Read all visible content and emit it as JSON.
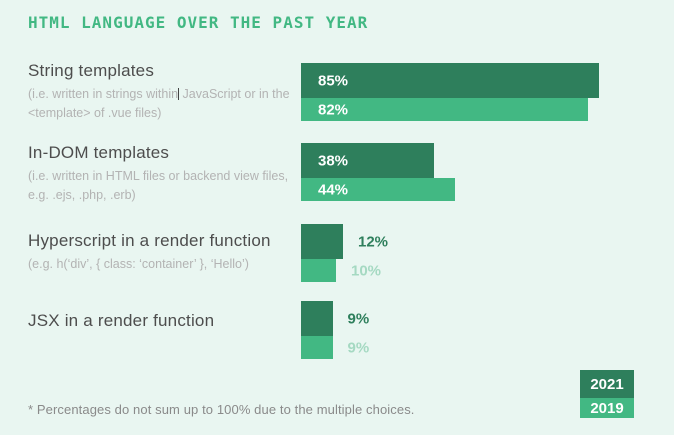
{
  "title": "HTML LANGUAGE OVER THE PAST YEAR",
  "footnote": "* Percentages do not sum up to 100% due to the multiple choices.",
  "legend": [
    {
      "label": "2021"
    },
    {
      "label": "2019"
    }
  ],
  "colors": {
    "background": "#e9f6f1",
    "title_text": "#42b883",
    "bar_2021": "#2e7f5c",
    "bar_2019": "#42b883",
    "value_outside_2021": "#2e7f5c",
    "value_outside_2019": "#a5d9c2",
    "category_text": "#4d4d4d",
    "subtitle_text": "#b3b3b3",
    "footnote_text": "#8a8a8a"
  },
  "groups": [
    {
      "title": "String templates",
      "subtitle_pre": "(i.e. written in strings within",
      "subtitle_post": " JavaScript or in the <template> of .vue files)",
      "has_cursor": true,
      "v2021": {
        "value": 85,
        "label": "85%"
      },
      "v2019": {
        "value": 82,
        "label": "82%"
      }
    },
    {
      "title": "In-DOM templates",
      "subtitle": "(i.e. written in HTML files or backend view files, e.g. .ejs, .php, .erb)",
      "v2021": {
        "value": 38,
        "label": "38%"
      },
      "v2019": {
        "value": 44,
        "label": "44%"
      }
    },
    {
      "title": "Hyperscript in a render function",
      "subtitle": "(e.g. h(‘div’, { class: ‘container’ }, ‘Hello’)",
      "v2021": {
        "value": 12,
        "label": "12%"
      },
      "v2019": {
        "value": 10,
        "label": "10%"
      }
    },
    {
      "title": "JSX in a render function",
      "subtitle": "",
      "v2021": {
        "value": 9,
        "label": "9%"
      },
      "v2019": {
        "value": 9,
        "label": "9%"
      }
    }
  ],
  "chart_data": {
    "type": "bar",
    "orientation": "horizontal",
    "title": "HTML LANGUAGE OVER THE PAST YEAR",
    "categories": [
      "String templates",
      "In-DOM templates",
      "Hyperscript in a render function",
      "JSX in a render function"
    ],
    "category_notes": [
      "(i.e. written in strings within JavaScript or in the <template> of .vue files)",
      "(i.e. written in HTML files or backend view files, e.g. .ejs, .php, .erb)",
      "(e.g. h(‘div’, { class: ‘container’ }, ‘Hello’)",
      ""
    ],
    "series": [
      {
        "name": "2021",
        "values": [
          85,
          38,
          12,
          9
        ],
        "color": "#2e7f5c"
      },
      {
        "name": "2019",
        "values": [
          82,
          44,
          10,
          9
        ],
        "color": "#42b883"
      }
    ],
    "unit": "%",
    "xlim": [
      0,
      100
    ],
    "grid": false,
    "legend_position": "bottom-right",
    "footnote": "* Percentages do not sum up to 100% due to the multiple choices."
  }
}
